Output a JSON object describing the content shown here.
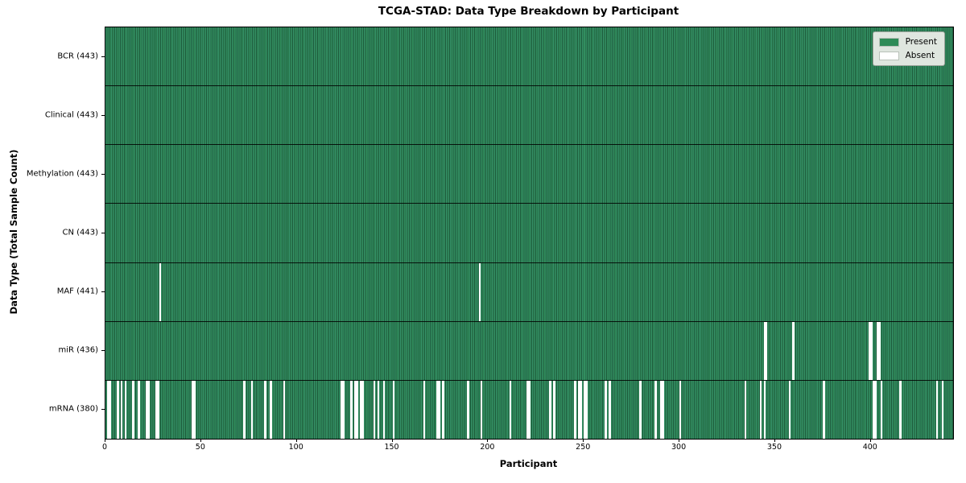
{
  "chart_data": {
    "type": "heatmap",
    "title": "TCGA-STAD: Data Type Breakdown by Participant",
    "xlabel": "Participant",
    "ylabel": "Data Type (Total Sample Count)",
    "x_ticks": [
      0,
      50,
      100,
      150,
      200,
      250,
      300,
      350,
      400
    ],
    "xlim": [
      0,
      443
    ],
    "n_participants": 443,
    "grid": false,
    "legend": {
      "position": "upper right",
      "items": [
        {
          "label": "Present",
          "color": "#2e8b57"
        },
        {
          "label": "Absent",
          "color": "#ffffff"
        }
      ]
    },
    "colors": {
      "present": "#2e8b57",
      "present_light": "#36926a",
      "present_edge": "#1d5a3a",
      "absent": "#ffffff",
      "row_divider": "#000000",
      "legend_bg": "#dfe6df"
    },
    "rows": [
      {
        "label": "BCR (443)",
        "data_type": "BCR",
        "present_count": 443,
        "absent_count": 0,
        "absent_participants": []
      },
      {
        "label": "Clinical (443)",
        "data_type": "Clinical",
        "present_count": 443,
        "absent_count": 0,
        "absent_participants": []
      },
      {
        "label": "Methylation (443)",
        "data_type": "Methylation",
        "present_count": 443,
        "absent_count": 0,
        "absent_participants": []
      },
      {
        "label": "CN (443)",
        "data_type": "CN",
        "present_count": 443,
        "absent_count": 0,
        "absent_participants": []
      },
      {
        "label": "MAF (441)",
        "data_type": "MAF",
        "present_count": 441,
        "absent_count": 2,
        "absent_participants": [
          28,
          195
        ]
      },
      {
        "label": "miR (436)",
        "data_type": "miR",
        "present_count": 436,
        "absent_count": 7,
        "absent_participants": [
          344,
          345,
          359,
          399,
          400,
          403,
          404
        ]
      },
      {
        "label": "mRNA (380)",
        "data_type": "mRNA",
        "present_count": 380,
        "absent_count": 63,
        "absent_participants": [
          1,
          2,
          6,
          8,
          10,
          14,
          17,
          21,
          22,
          26,
          27,
          45,
          46,
          72,
          76,
          83,
          86,
          93,
          123,
          124,
          128,
          130,
          131,
          133,
          134,
          140,
          142,
          145,
          150,
          166,
          173,
          174,
          176,
          189,
          196,
          211,
          220,
          221,
          232,
          234,
          245,
          247,
          248,
          250,
          251,
          261,
          263,
          279,
          287,
          290,
          291,
          300,
          334,
          342,
          344,
          357,
          375,
          401,
          402,
          405,
          415,
          434,
          437
        ]
      }
    ]
  }
}
